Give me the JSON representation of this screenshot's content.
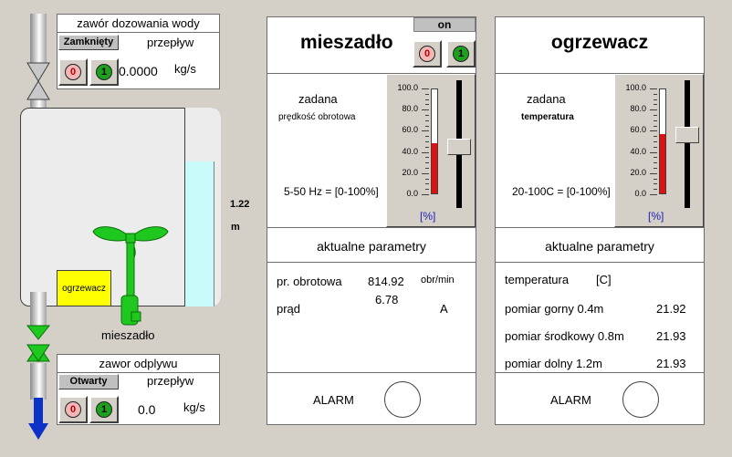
{
  "inlet_valve": {
    "title": "zawór dozowania wody",
    "state": "Zamknięty",
    "flow_label": "przepływ",
    "btn0": "0",
    "btn1": "1",
    "flow_value": "0.0000",
    "unit": "kg/s"
  },
  "outlet_valve": {
    "title": "zawor odplywu",
    "state": "Otwarty",
    "flow_label": "przepływ",
    "btn0": "0",
    "btn1": "1",
    "flow_value": "0.0",
    "unit": "kg/s"
  },
  "tank": {
    "level_value": "1.22",
    "level_unit": "m",
    "level_fraction": 0.73,
    "heater_label": "ogrzewacz",
    "mixer_label": "mieszadło"
  },
  "mixer": {
    "title": "mieszadło",
    "on_label": "on",
    "btn0": "0",
    "btn1": "1",
    "setpoint_title": "zadana",
    "setpoint_subtitle": "prędkość obrotowa",
    "range_label": "5-50 Hz = [0-100%]",
    "scale": [
      "100.0",
      "80.0",
      "60.0",
      "40.0",
      "20.0",
      "0.0"
    ],
    "scale_unit": "[%]",
    "setpoint_percent": 48,
    "params_title": "aktualne parametry",
    "speed_label": "pr. obrotowa",
    "speed_value": "814.92",
    "speed_unit": "obr/min",
    "current_label": "prąd",
    "current_value": "6.78",
    "current_unit": "A",
    "alarm_label": "ALARM"
  },
  "heater": {
    "title": "ogrzewacz",
    "setpoint_title": "zadana",
    "setpoint_subtitle": "temperatura",
    "range_label": "20-100C = [0-100%]",
    "scale": [
      "100.0",
      "80.0",
      "60.0",
      "40.0",
      "20.0",
      "0.0"
    ],
    "scale_unit": "[%]",
    "setpoint_percent": 57,
    "params_title": "aktualne parametry",
    "temp_label": "temperatura",
    "temp_unit": "[C]",
    "rows": [
      {
        "label": "pomiar gorny 0.4m",
        "value": "21.92"
      },
      {
        "label": "pomiar środkowy 0.8m",
        "value": "21.93"
      },
      {
        "label": "pomiar dolny 1.2m",
        "value": "21.93"
      }
    ],
    "alarm_label": "ALARM"
  },
  "colors": {
    "water": "#c8fafa",
    "heater": "#ffff00",
    "mixer": "#1ec81e",
    "bar_fill": "#e01010",
    "flow_arrow": "#0a32c8"
  }
}
